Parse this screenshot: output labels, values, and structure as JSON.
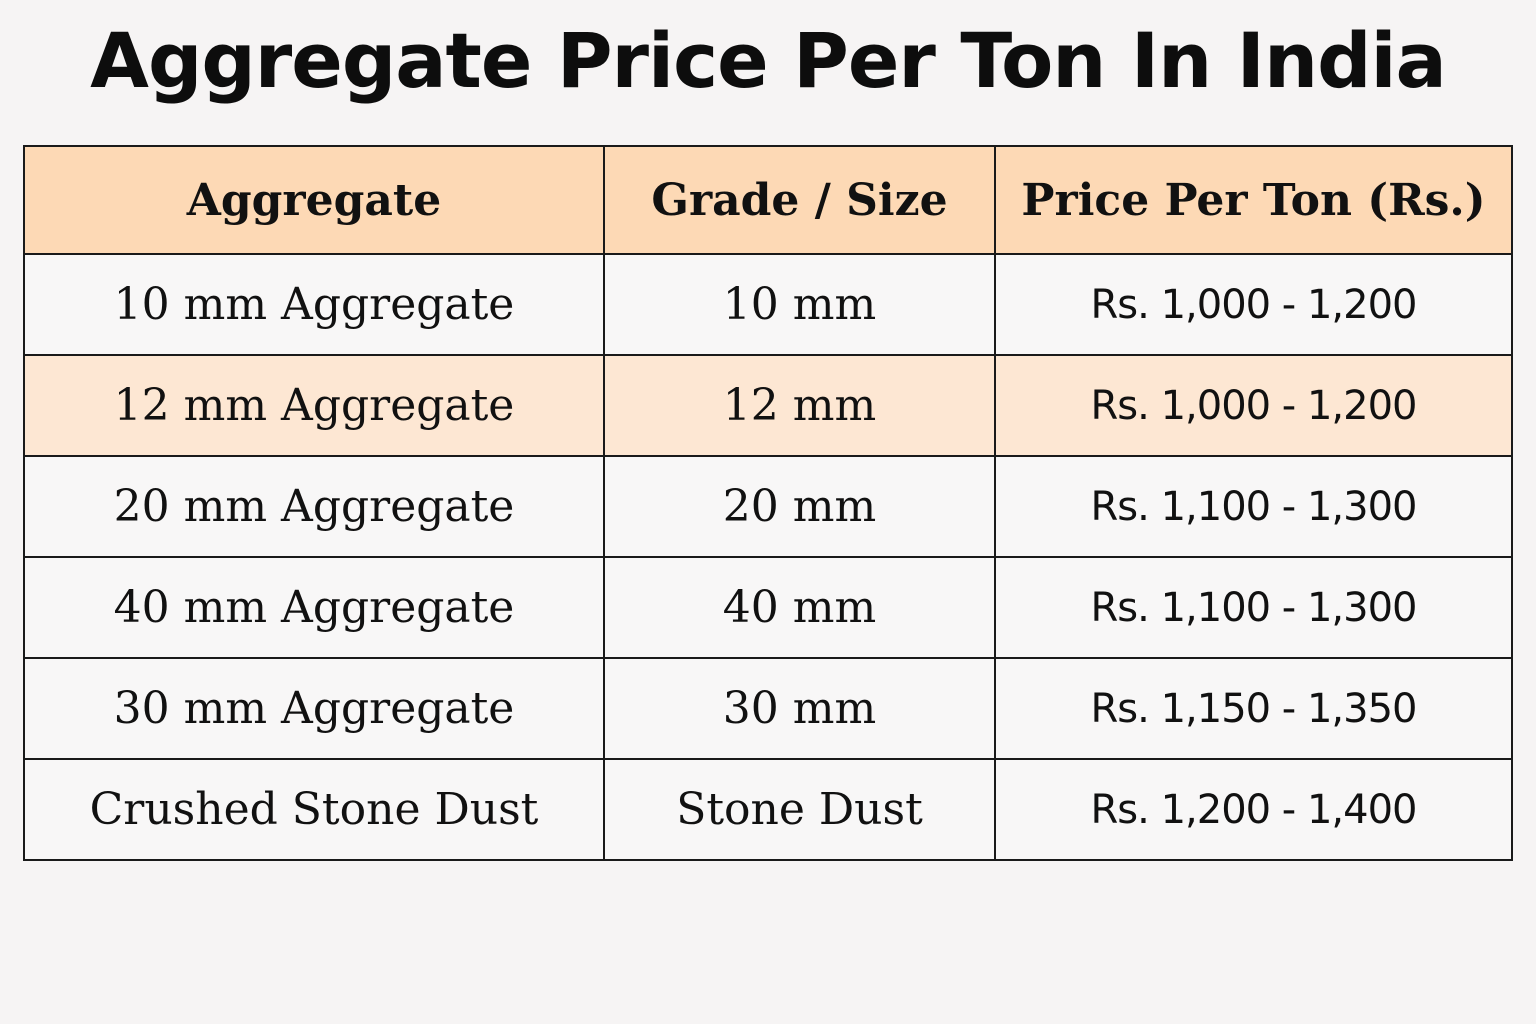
{
  "title": "Aggregate Price Per Ton In India",
  "table": {
    "headers": [
      "Aggregate",
      "Grade / Size",
      "Price Per Ton (Rs.)"
    ],
    "rows": [
      {
        "aggregate": "10 mm Aggregate",
        "grade": "10 mm",
        "price": "Rs. 1,000 - 1,200"
      },
      {
        "aggregate": "12 mm Aggregate",
        "grade": "12 mm",
        "price": "Rs. 1,000 - 1,200"
      },
      {
        "aggregate": "20 mm Aggregate",
        "grade": "20 mm",
        "price": "Rs. 1,100 - 1,300"
      },
      {
        "aggregate": "40 mm Aggregate",
        "grade": "40 mm",
        "price": "Rs. 1,100 - 1,300"
      },
      {
        "aggregate": "30 mm Aggregate",
        "grade": "30 mm",
        "price": "Rs. 1,150 - 1,350"
      },
      {
        "aggregate": "Crushed Stone Dust",
        "grade": "Stone Dust",
        "price": "Rs. 1,200 - 1,400"
      }
    ]
  },
  "colors": {
    "header_background": "#fdd9b5",
    "highlight_row_background": "#fde7d3",
    "row_background": "#f8f7f7",
    "border": "#1a1a1a",
    "page_background": "#f6f4f4"
  }
}
